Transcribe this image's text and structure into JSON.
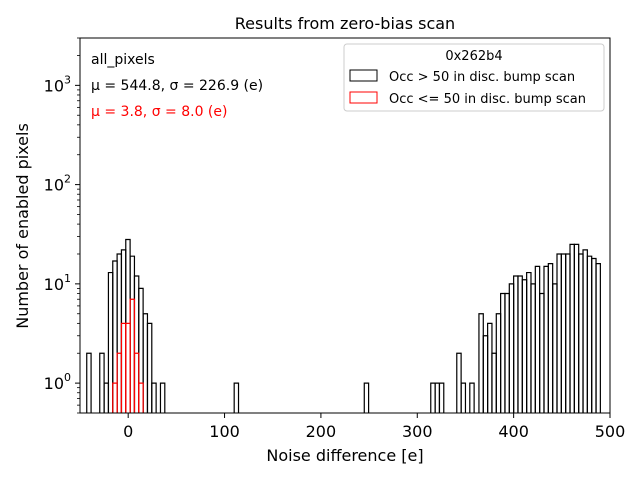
{
  "chart_data": {
    "type": "histogram",
    "title": "Results from zero-bias scan",
    "xlabel": "Noise difference [e]",
    "ylabel": "Number of enabled pixels",
    "yscale": "log",
    "xlim": [
      -50,
      500
    ],
    "ylim": [
      0.5,
      3000
    ],
    "bin_width": 4.5,
    "x_ticks": [
      0,
      100,
      200,
      300,
      400,
      500
    ],
    "x_tick_labels": [
      "0",
      "100",
      "200",
      "300",
      "400",
      "500"
    ],
    "y_ticks": [
      1,
      10,
      100,
      1000
    ],
    "y_tick_labels": [
      "10^0",
      "10^1",
      "10^2",
      "10^3"
    ],
    "legend": {
      "title": "0x262b4",
      "location": "top-right",
      "entries": [
        "Occ > 50 in disc. bump scan",
        "Occ <= 50 in disc. bump scan"
      ]
    },
    "annotations": {
      "label": "all_pixels",
      "stats_black": "μ = 544.8, σ = 226.9 (e)",
      "stats_red": "μ = 3.8, σ = 8.0 (e)"
    },
    "series": [
      {
        "name": "Occ > 50 in disc. bump scan",
        "color": "#000000",
        "bins": [
          [
            -43,
            -38.5,
            2
          ],
          [
            -38.5,
            -34,
            0
          ],
          [
            -34,
            -29.5,
            0
          ],
          [
            -29.5,
            -25,
            2
          ],
          [
            -25,
            -20.5,
            1
          ],
          [
            -20.5,
            -16,
            13
          ],
          [
            -16,
            -11.5,
            17
          ],
          [
            -11.5,
            -7,
            20
          ],
          [
            -7,
            -2.5,
            22
          ],
          [
            -2.5,
            2,
            28
          ],
          [
            2,
            6.5,
            19
          ],
          [
            6.5,
            11,
            12
          ],
          [
            11,
            15.5,
            9
          ],
          [
            15.5,
            20,
            5
          ],
          [
            20,
            24.5,
            4
          ],
          [
            24.5,
            29,
            1
          ],
          [
            29,
            33.5,
            0
          ],
          [
            33.5,
            38,
            1
          ],
          [
            110,
            114.5,
            1
          ],
          [
            245,
            249.5,
            1
          ],
          [
            314,
            318.5,
            1
          ],
          [
            318.5,
            323,
            1
          ],
          [
            323,
            327.5,
            1
          ],
          [
            341,
            345.5,
            2
          ],
          [
            345.5,
            350,
            1
          ],
          [
            354.5,
            359,
            1
          ],
          [
            364,
            368.5,
            5
          ],
          [
            368.5,
            373,
            3
          ],
          [
            373,
            377.5,
            4
          ],
          [
            377.5,
            382,
            2
          ],
          [
            382,
            386.5,
            5
          ],
          [
            386.5,
            391,
            8
          ],
          [
            391,
            395.5,
            8
          ],
          [
            395.5,
            400,
            10
          ],
          [
            400,
            404.5,
            12
          ],
          [
            404.5,
            409,
            12
          ],
          [
            409,
            413.5,
            11
          ],
          [
            413.5,
            418,
            13
          ],
          [
            418,
            422.5,
            10
          ],
          [
            422.5,
            427,
            15
          ],
          [
            427,
            431.5,
            8
          ],
          [
            431.5,
            436,
            15
          ],
          [
            436,
            440.5,
            16
          ],
          [
            440.5,
            445,
            10
          ],
          [
            445,
            449.5,
            20
          ],
          [
            449.5,
            454,
            20
          ],
          [
            454,
            458.5,
            20
          ],
          [
            458.5,
            463,
            25
          ],
          [
            463,
            467.5,
            25
          ],
          [
            467.5,
            472,
            20
          ],
          [
            472,
            476.5,
            22
          ],
          [
            476.5,
            481,
            19
          ],
          [
            481,
            485.5,
            18
          ],
          [
            485.5,
            490,
            16
          ],
          [
            490,
            494.5,
            0
          ]
        ]
      },
      {
        "name": "Occ <= 50 in disc. bump scan",
        "color": "#ff0000",
        "bins": [
          [
            -20.5,
            -16,
            0
          ],
          [
            -16,
            -11.5,
            1
          ],
          [
            -11.5,
            -7,
            2
          ],
          [
            -7,
            -2.5,
            4
          ],
          [
            -2.5,
            2,
            4
          ],
          [
            2,
            6.5,
            7
          ],
          [
            6.5,
            11,
            2
          ],
          [
            11,
            15.5,
            1
          ],
          [
            15.5,
            20,
            0
          ]
        ]
      }
    ]
  }
}
